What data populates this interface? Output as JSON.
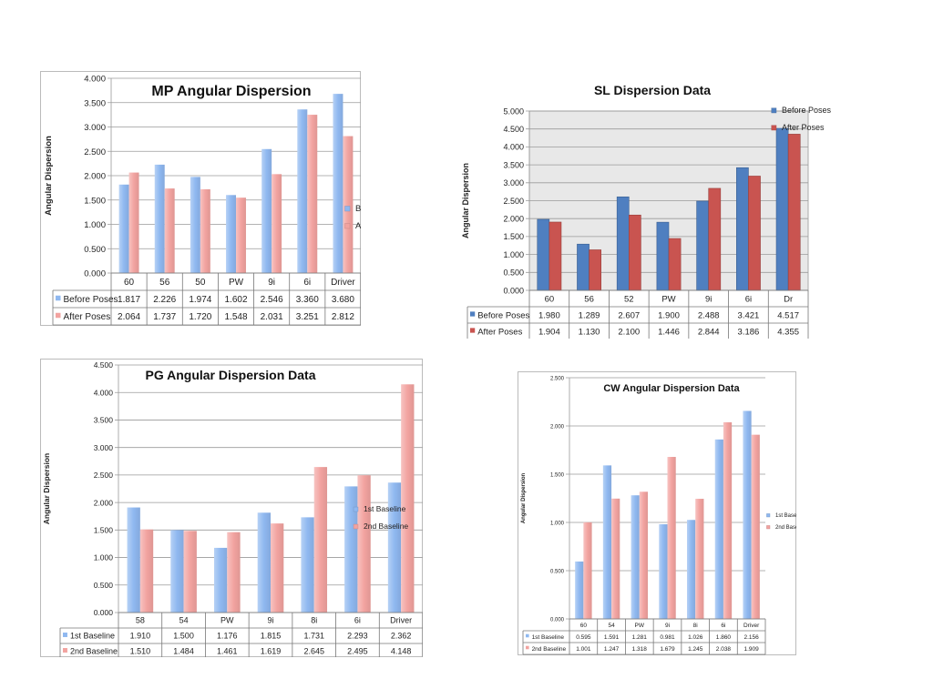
{
  "chart_data": [
    {
      "id": "mp",
      "type": "bar",
      "title": "MP Angular Dispersion",
      "ylabel": "Angular Dispersion",
      "categories": [
        "60",
        "56",
        "50",
        "PW",
        "9i",
        "6i",
        "Driver"
      ],
      "ylim": [
        0,
        4
      ],
      "yticks": [
        "0.000",
        "0.500",
        "1.000",
        "1.500",
        "2.000",
        "2.500",
        "3.000",
        "3.500",
        "4.000"
      ],
      "background": "none",
      "grid": true,
      "legend": "right",
      "series": [
        {
          "name": "Before Poses",
          "color": "#8fb8f0",
          "values": [
            1.817,
            2.226,
            1.974,
            1.602,
            2.546,
            3.36,
            3.68
          ],
          "labels": [
            "1.817",
            "2.226",
            "1.974",
            "1.602",
            "2.546",
            "3.360",
            "3.680"
          ]
        },
        {
          "name": "After Poses",
          "color": "#f2a3a0",
          "values": [
            2.064,
            1.737,
            1.72,
            1.548,
            2.031,
            3.251,
            2.812
          ],
          "labels": [
            "2.064",
            "1.737",
            "1.720",
            "1.548",
            "2.031",
            "3.251",
            "2.812"
          ]
        }
      ]
    },
    {
      "id": "sl",
      "type": "bar",
      "title": "SL Dispersion Data",
      "ylabel": "Angular Dispersion",
      "categories": [
        "60",
        "56",
        "52",
        "PW",
        "9i",
        "6i",
        "Dr"
      ],
      "ylim": [
        0,
        5
      ],
      "yticks": [
        "0.000",
        "0.500",
        "1.000",
        "1.500",
        "2.000",
        "2.500",
        "3.000",
        "3.500",
        "4.000",
        "4.500",
        "5.000"
      ],
      "background": "gray",
      "grid": true,
      "legend": "top-right",
      "series": [
        {
          "name": "Before Poses",
          "color": "#4f7fc0",
          "values": [
            1.98,
            1.289,
            2.607,
            1.9,
            2.488,
            3.421,
            4.517
          ],
          "labels": [
            "1.980",
            "1.289",
            "2.607",
            "1.900",
            "2.488",
            "3.421",
            "4.517"
          ]
        },
        {
          "name": "After Poses",
          "color": "#c95450",
          "values": [
            1.904,
            1.13,
            2.1,
            1.446,
            2.844,
            3.186,
            4.355
          ],
          "labels": [
            "1.904",
            "1.130",
            "2.100",
            "1.446",
            "2.844",
            "3.186",
            "4.355"
          ]
        }
      ]
    },
    {
      "id": "pg",
      "type": "bar",
      "title": "PG Angular Dispersion Data",
      "ylabel": "Angular Dispersion",
      "categories": [
        "58",
        "54",
        "PW",
        "9i",
        "8i",
        "6i",
        "Driver"
      ],
      "ylim": [
        0,
        4.5
      ],
      "yticks": [
        "0.000",
        "0.500",
        "1.000",
        "1.500",
        "2.000",
        "2.500",
        "3.000",
        "3.500",
        "4.000",
        "4.500"
      ],
      "background": "none",
      "grid": true,
      "legend": "right",
      "series": [
        {
          "name": "1st Baseline",
          "color": "#8fb8f0",
          "values": [
            1.91,
            1.5,
            1.176,
            1.815,
            1.731,
            2.293,
            2.362
          ],
          "labels": [
            "1.910",
            "1.500",
            "1.176",
            "1.815",
            "1.731",
            "2.293",
            "2.362"
          ]
        },
        {
          "name": "2nd Baseline",
          "color": "#f2a3a0",
          "values": [
            1.51,
            1.484,
            1.461,
            1.619,
            2.645,
            2.495,
            4.148
          ],
          "labels": [
            "1.510",
            "1.484",
            "1.461",
            "1.619",
            "2.645",
            "2.495",
            "4.148"
          ]
        }
      ]
    },
    {
      "id": "cw",
      "type": "bar",
      "title": "CW Angular Dispersion Data",
      "ylabel": "Angular Dispersion",
      "categories": [
        "60",
        "54",
        "PW",
        "9i",
        "8i",
        "6i",
        "Driver"
      ],
      "ylim": [
        0,
        2.5
      ],
      "yticks": [
        "0.000",
        "0.500",
        "1.000",
        "1.500",
        "2.000",
        "2.500"
      ],
      "background": "none",
      "grid": true,
      "legend": "right",
      "series": [
        {
          "name": "1st Baseline",
          "color": "#8fb8f0",
          "values": [
            0.595,
            1.591,
            1.281,
            0.981,
            1.026,
            1.86,
            2.156
          ],
          "labels": [
            "0.595",
            "1.591",
            "1.281",
            "0.981",
            "1.026",
            "1.860",
            "2.156"
          ]
        },
        {
          "name": "2nd Baseline",
          "color": "#f2a3a0",
          "values": [
            1.001,
            1.247,
            1.318,
            1.679,
            1.245,
            2.038,
            1.909
          ],
          "labels": [
            "1.001",
            "1.247",
            "1.318",
            "1.679",
            "1.245",
            "2.038",
            "1.909"
          ]
        }
      ]
    }
  ]
}
